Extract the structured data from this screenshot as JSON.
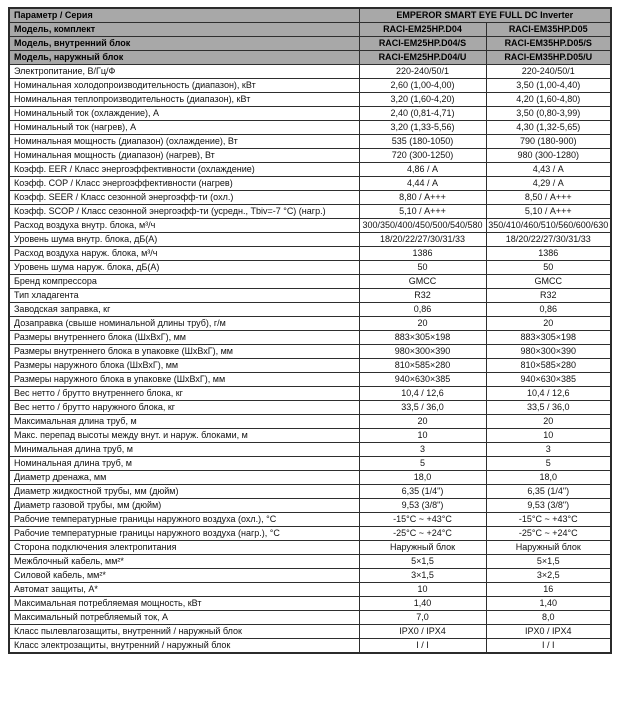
{
  "header": {
    "param_label": "Параметр / Серия",
    "series_label": "EMPEROR SMART EYE FULL DC Inverter"
  },
  "model_rows": [
    {
      "label": "Модель, комплект",
      "col1": "RACI-EM25HP.D04",
      "col2": "RACI-EM35HP.D05"
    },
    {
      "label": "Модель, внутренний блок",
      "col1": "RACI-EM25HP.D04/S",
      "col2": "RACI-EM35HP.D05/S"
    },
    {
      "label": "Модель, наружный блок",
      "col1": "RACI-EM25HP.D04/U",
      "col2": "RACI-EM35HP.D05/U"
    }
  ],
  "spec_rows": [
    {
      "label": "Электропитание, В/Гц/Ф",
      "col1": "220-240/50/1",
      "col2": "220-240/50/1"
    },
    {
      "label": "Номинальная холодопроизводительность (диапазон), кВт",
      "col1": "2,60 (1,00-4,00)",
      "col2": "3,50 (1,00-4,40)"
    },
    {
      "label": "Номинальная теплопроизводительность (диапазон), кВт",
      "col1": "3,20 (1,60-4,20)",
      "col2": "4,20 (1,60-4,80)"
    },
    {
      "label": "Номинальный ток (охлаждение), А",
      "col1": "2,40 (0,81-4,71)",
      "col2": "3,50 (0,80-3,99)"
    },
    {
      "label": "Номинальный ток (нагрев), А",
      "col1": "3,20 (1,33-5,56)",
      "col2": "4,30 (1,32-5,65)"
    },
    {
      "label": "Номинальная мощность (диапазон) (охлаждение), Вт",
      "col1": "535 (180-1050)",
      "col2": "790 (180-900)"
    },
    {
      "label": "Номинальная мощность (диапазон) (нагрев), Вт",
      "col1": "720 (300-1250)",
      "col2": "980 (300-1280)"
    },
    {
      "label": "Коэфф. EER / Класс энергоэффективности (охлаждение)",
      "col1": "4,86 / А",
      "col2": "4,43 / А"
    },
    {
      "label": "Коэфф. COP / Класс энергоэффективности (нагрев)",
      "col1": "4,44 / А",
      "col2": "4,29 / А"
    },
    {
      "label": "Коэфф. SEER / Класс сезонной энергоэфф-ти (охл.)",
      "col1": "8,80 / А+++",
      "col2": "8,50 / А+++"
    },
    {
      "label": "Коэфф. SCOP / Класс сезонной энергоэфф-ти (усредн., Tbiv=-7 °C) (нагр.)",
      "col1": "5,10 / А+++",
      "col2": "5,10 / А+++"
    },
    {
      "label": "Расход воздуха внутр. блока, м³/ч",
      "col1": "300/350/400/450/500/540/580",
      "col2": "350/410/460/510/560/600/630"
    },
    {
      "label": "Уровень шума внутр. блока, дБ(А)",
      "col1": "18/20/22/27/30/31/33",
      "col2": "18/20/22/27/30/31/33"
    },
    {
      "label": "Расход воздуха наруж. блока, м³/ч",
      "col1": "1386",
      "col2": "1386"
    },
    {
      "label": "Уровень шума наруж. блока, дБ(А)",
      "col1": "50",
      "col2": "50"
    },
    {
      "label": "Бренд компрессора",
      "col1": "GMCC",
      "col2": "GMCC"
    },
    {
      "label": "Тип хладагента",
      "col1": "R32",
      "col2": "R32"
    },
    {
      "label": "Заводская заправка, кг",
      "col1": "0,86",
      "col2": "0,86"
    },
    {
      "label": "Дозаправка (свыше номинальной длины труб), г/м",
      "col1": "20",
      "col2": "20"
    },
    {
      "label": "Размеры внутреннего блока (ШхВхГ), мм",
      "col1": "883×305×198",
      "col2": "883×305×198"
    },
    {
      "label": "Размеры внутреннего блока в упаковке (ШхВхГ), мм",
      "col1": "980×300×390",
      "col2": "980×300×390"
    },
    {
      "label": "Размеры наружного блока (ШхВхГ), мм",
      "col1": "810×585×280",
      "col2": "810×585×280"
    },
    {
      "label": "Размеры наружного блока в упаковке (ШхВхГ), мм",
      "col1": "940×630×385",
      "col2": "940×630×385"
    },
    {
      "label": "Вес нетто / брутто внутреннего блока, кг",
      "col1": "10,4 / 12,6",
      "col2": "10,4 / 12,6"
    },
    {
      "label": "Вес нетто / брутто наружного блока, кг",
      "col1": "33,5 / 36,0",
      "col2": "33,5 / 36,0"
    },
    {
      "label": "Максимальная длина труб, м",
      "col1": "20",
      "col2": "20"
    },
    {
      "label": "Макс. перепад высоты между внут. и наруж. блоками, м",
      "col1": "10",
      "col2": "10"
    },
    {
      "label": "Минимальная длина труб, м",
      "col1": "3",
      "col2": "3"
    },
    {
      "label": "Номинальная длина труб, м",
      "col1": "5",
      "col2": "5"
    },
    {
      "label": "Диаметр дренажа, мм",
      "col1": "18,0",
      "col2": "18,0"
    },
    {
      "label": "Диаметр жидкостной трубы, мм (дюйм)",
      "col1": "6,35 (1/4\")",
      "col2": "6,35 (1/4\")"
    },
    {
      "label": "Диаметр газовой трубы, мм (дюйм)",
      "col1": "9,53 (3/8\")",
      "col2": "9,53 (3/8\")"
    },
    {
      "label": "Рабочие температурные границы наружного воздуха (охл.), °С",
      "col1": "-15°С ~ +43°С",
      "col2": "-15°С ~ +43°С"
    },
    {
      "label": "Рабочие температурные границы наружного воздуха (нагр.), °С",
      "col1": "-25°С ~ +24°С",
      "col2": "-25°С ~ +24°С"
    },
    {
      "label": "Сторона подключения электропитания",
      "col1": "Наружный блок",
      "col2": "Наружный блок"
    },
    {
      "label": "Межблочный кабель, мм²*",
      "col1": "5×1,5",
      "col2": "5×1,5"
    },
    {
      "label": "Силовой кабель, мм²*",
      "col1": "3×1,5",
      "col2": "3×2,5"
    },
    {
      "label": "Автомат защиты, А*",
      "col1": "10",
      "col2": "16"
    },
    {
      "label": "Максимальная потребляемая мощность, кВт",
      "col1": "1,40",
      "col2": "1,40"
    },
    {
      "label": "Максимальный потребляемый ток, А",
      "col1": "7,0",
      "col2": "8,0"
    },
    {
      "label": "Класс пылевлагозащиты, внутренний / наружный блок",
      "col1": "IPX0 / IPX4",
      "col2": "IPX0 / IPX4"
    },
    {
      "label": "Класс электрозащиты, внутренний / наружный блок",
      "col1": "I / I",
      "col2": "I / I"
    }
  ],
  "colors": {
    "header_bg": "#a8a8a8",
    "border": "#2e2e2e",
    "text": "#111111"
  }
}
